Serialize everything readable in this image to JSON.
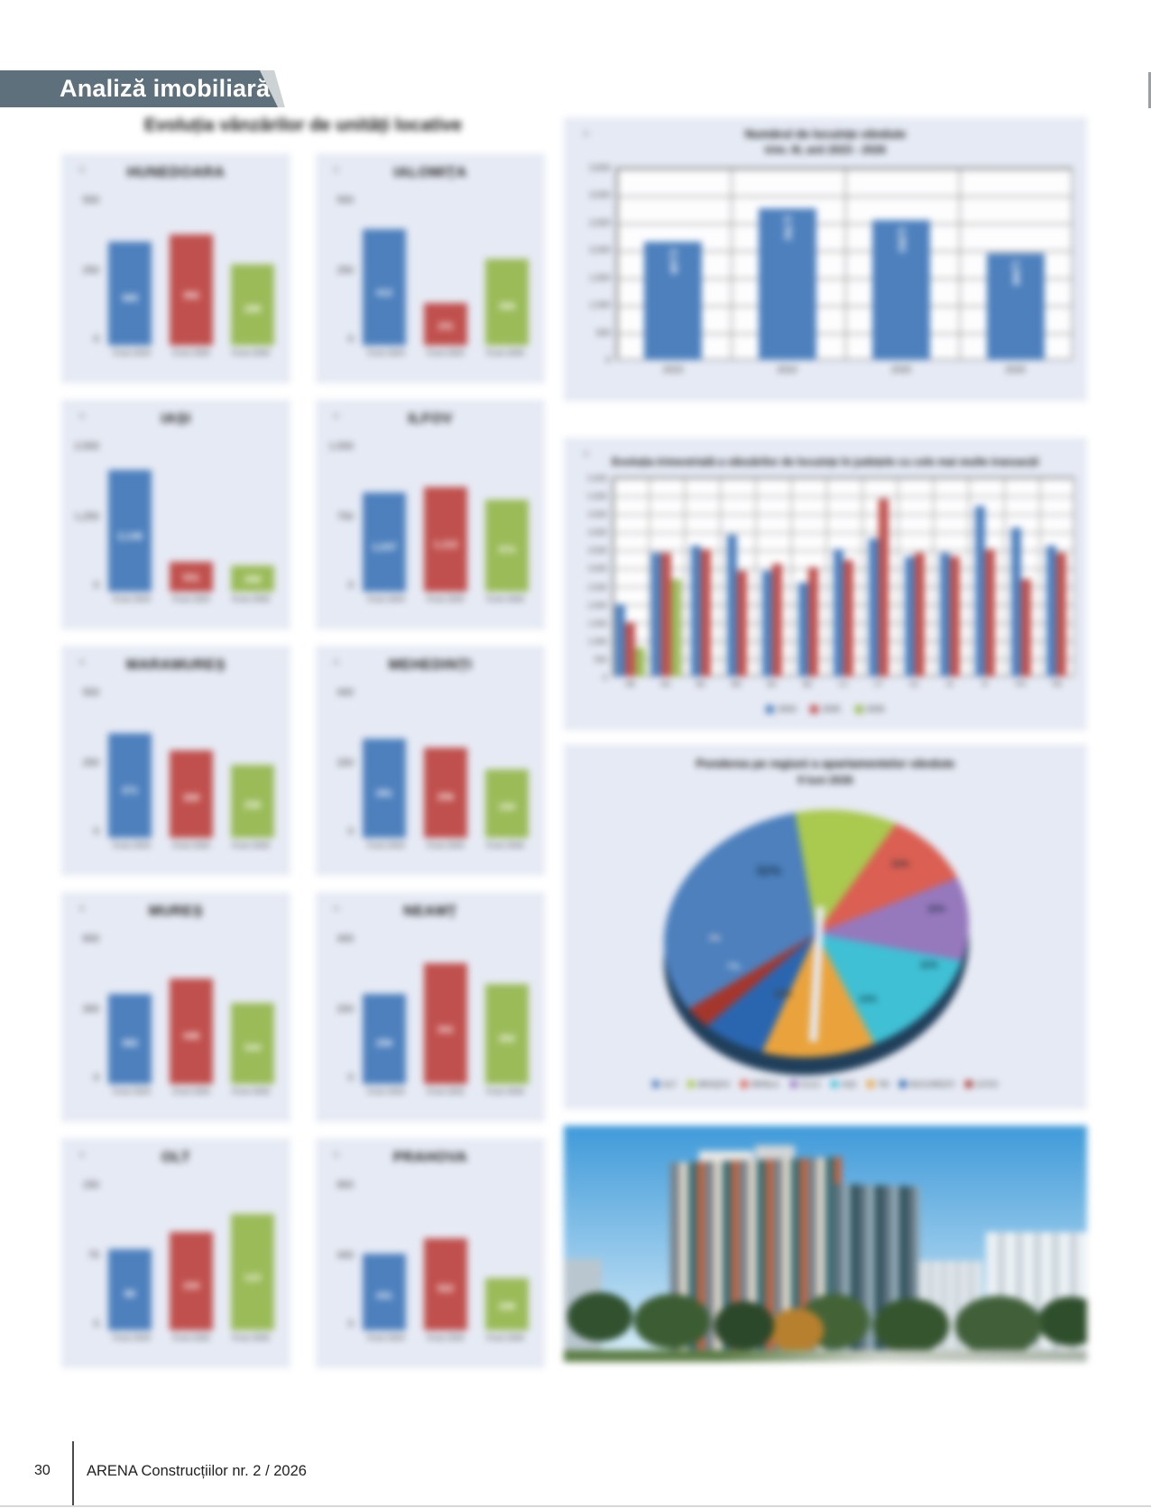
{
  "banner": {
    "title": "Analiză imobiliară"
  },
  "section_title": "Evoluția vânzărilor de unități locative",
  "footer": {
    "page_number": "30",
    "magazine": "ARENA Construcțiilor nr. 2 / 2026"
  },
  "colors": {
    "banner": "#5d707b",
    "panel_bg": "#e6eaf4",
    "series_blue": "#4d80bd",
    "series_red": "#c0504d",
    "series_green": "#9bbb59"
  },
  "chart_data": [
    {
      "id": "mini-1",
      "type": "bar",
      "title": "HUNEDOARA",
      "unit": "u.",
      "categories": [
        "9 luni 2024",
        "9 luni 2025",
        "9 luni 2026"
      ],
      "values": [
        365,
        392,
        288
      ],
      "value_labels": [
        "365",
        "392",
        "288"
      ],
      "ylim": [
        0,
        500
      ],
      "yticks": [
        "500",
        "250",
        "0"
      ]
    },
    {
      "id": "mini-2",
      "type": "bar",
      "title": "IALOMIȚA",
      "unit": "u.",
      "categories": [
        "9 luni 2024",
        "9 luni 2025",
        "9 luni 2026"
      ],
      "values": [
        412,
        151,
        306
      ],
      "value_labels": [
        "412",
        "151",
        "306"
      ],
      "ylim": [
        0,
        500
      ],
      "yticks": [
        "500",
        "250",
        "0"
      ]
    },
    {
      "id": "mini-3",
      "type": "bar",
      "title": "IAȘI",
      "unit": "u.",
      "categories": [
        "9 luni 2024",
        "9 luni 2025",
        "9 luni 2026"
      ],
      "values": [
        2148,
        531,
        458
      ],
      "value_labels": [
        "2,148",
        "531",
        "458"
      ],
      "ylim": [
        0,
        2500
      ],
      "yticks": [
        "2,500",
        "1,250",
        "0"
      ]
    },
    {
      "id": "mini-4",
      "type": "bar",
      "title": "ILFOV",
      "unit": "u.",
      "categories": [
        "9 luni 2024",
        "9 luni 2025",
        "9 luni 2026"
      ],
      "values": [
        1047,
        1112,
        974
      ],
      "value_labels": [
        "1,047",
        "1,112",
        "974"
      ],
      "ylim": [
        0,
        1500
      ],
      "yticks": [
        "1,500",
        "750",
        "0"
      ]
    },
    {
      "id": "mini-5",
      "type": "bar",
      "title": "MARAMUREȘ",
      "unit": "u.",
      "categories": [
        "9 luni 2024",
        "9 luni 2025",
        "9 luni 2026"
      ],
      "values": [
        371,
        309,
        258
      ],
      "value_labels": [
        "371",
        "309",
        "258"
      ],
      "ylim": [
        0,
        500
      ],
      "yticks": [
        "500",
        "250",
        "0"
      ]
    },
    {
      "id": "mini-6",
      "type": "bar",
      "title": "MEHEDINȚI",
      "unit": "u.",
      "categories": [
        "9 luni 2024",
        "9 luni 2025",
        "9 luni 2026"
      ],
      "values": [
        281,
        256,
        194
      ],
      "value_labels": [
        "281",
        "256",
        "194"
      ],
      "ylim": [
        0,
        400
      ],
      "yticks": [
        "400",
        "200",
        "0"
      ]
    },
    {
      "id": "mini-7",
      "type": "bar",
      "title": "MUREȘ",
      "unit": "u.",
      "categories": [
        "9 luni 2024",
        "9 luni 2025",
        "9 luni 2026"
      ],
      "values": [
        382,
        446,
        344
      ],
      "value_labels": [
        "382",
        "446",
        "344"
      ],
      "ylim": [
        0,
        600
      ],
      "yticks": [
        "600",
        "300",
        "0"
      ]
    },
    {
      "id": "mini-8",
      "type": "bar",
      "title": "NEAMȚ",
      "unit": "u.",
      "categories": [
        "9 luni 2024",
        "9 luni 2025",
        "9 luni 2026"
      ],
      "values": [
        256,
        341,
        282
      ],
      "value_labels": [
        "256",
        "341",
        "282"
      ],
      "ylim": [
        0,
        400
      ],
      "yticks": [
        "400",
        "200",
        "0"
      ]
    },
    {
      "id": "mini-9",
      "type": "bar",
      "title": "OLT",
      "unit": "u.",
      "categories": [
        "9 luni 2024",
        "9 luni 2025",
        "9 luni 2026"
      ],
      "values": [
        86,
        104,
        123
      ],
      "value_labels": [
        "86",
        "104",
        "123"
      ],
      "ylim": [
        0,
        150
      ],
      "yticks": [
        "150",
        "75",
        "0"
      ]
    },
    {
      "id": "mini-10",
      "type": "bar",
      "title": "PRAHOVA",
      "unit": "u.",
      "categories": [
        "9 luni 2024",
        "9 luni 2025",
        "9 luni 2026"
      ],
      "values": [
        431,
        522,
        298
      ],
      "value_labels": [
        "431",
        "522",
        "298"
      ],
      "ylim": [
        0,
        800
      ],
      "yticks": [
        "800",
        "400",
        "0"
      ]
    },
    {
      "id": "annual",
      "type": "bar",
      "title_line1": "Numărul de locuințe vândute",
      "title_line2": "trim. III, anii 2023 - 2026",
      "unit": "u.",
      "categories": [
        "2023",
        "2024",
        "2025",
        "2026"
      ],
      "values": [
        2148,
        2762,
        2553,
        1946
      ],
      "value_labels": [
        "2,148",
        "2,762",
        "2,553",
        "1,946"
      ],
      "ylim": [
        0,
        3500
      ],
      "yticks": [
        "3,500",
        "3,000",
        "2,500",
        "2,000",
        "1,500",
        "1,000",
        "500",
        "0"
      ],
      "grid": true
    },
    {
      "id": "quarterly",
      "type": "bar",
      "title": "Evoluția trimestrială a vânzărilor de locuințe în județele cu cele mai multe tranzacții",
      "unit": "u.",
      "categories": [
        "AB",
        "AG",
        "BC",
        "BH",
        "BV",
        "BZ",
        "CJ",
        "CT",
        "DJ",
        "IS",
        "IF",
        "PH",
        "TM"
      ],
      "series": [
        {
          "name": "2024",
          "color": "#4d80bd",
          "values": [
            2000,
            3400,
            3600,
            3900,
            2900,
            2600,
            3500,
            3800,
            3300,
            3400,
            4700,
            4100,
            3600
          ]
        },
        {
          "name": "2025",
          "color": "#c0504d",
          "values": [
            1500,
            3400,
            3500,
            2900,
            3100,
            3000,
            3200,
            4900,
            3400,
            3300,
            3500,
            2700,
            3400
          ]
        },
        {
          "name": "2026",
          "color": "#9bbb59",
          "values": [
            800,
            2700,
            0,
            0,
            0,
            0,
            0,
            0,
            0,
            0,
            0,
            0,
            0
          ]
        }
      ],
      "ylim": [
        0,
        5500
      ],
      "yticks": [
        "5,500",
        "5,000",
        "4,500",
        "4,000",
        "3,500",
        "3,000",
        "2,500",
        "2,000",
        "1,500",
        "1,000",
        "500",
        "0"
      ],
      "legend_position": "bottom"
    },
    {
      "id": "regional-pie",
      "type": "pie",
      "title_line1": "Ponderea pe regiuni a apartamentelor vândute",
      "title_line2": "9 luni 2026",
      "slices": [
        {
          "label": "BRAȘOV",
          "value": 11,
          "pct": "11%",
          "color": "#aac94f"
        },
        {
          "label": "BRĂILA",
          "value": 10,
          "pct": "10%",
          "color": "#db5f52"
        },
        {
          "label": "CLUJ",
          "value": 11,
          "pct": "11%",
          "color": "#9678bd"
        },
        {
          "label": "IAȘI",
          "value": 14,
          "pct": "14%",
          "color": "#3fc0d4"
        },
        {
          "label": "TM",
          "value": 12,
          "pct": "12%",
          "color": "#eaa33c"
        },
        {
          "label": "BUCUREȘTI",
          "value": 7,
          "pct": "7%",
          "color": "#2a66b0"
        },
        {
          "label": "ILFOV",
          "value": 3,
          "pct": "3%",
          "color": "#a5362c"
        },
        {
          "label": "ALT",
          "value": 32,
          "pct": "32%",
          "color": "#4d80bd"
        }
      ],
      "legend_order": [
        7,
        0,
        1,
        2,
        3,
        4,
        5,
        6
      ],
      "legend_position": "bottom"
    }
  ]
}
